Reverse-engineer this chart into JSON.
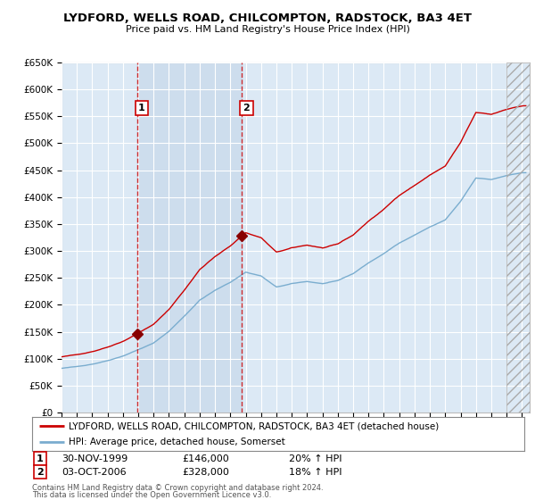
{
  "title": "LYDFORD, WELLS ROAD, CHILCOMPTON, RADSTOCK, BA3 4ET",
  "subtitle": "Price paid vs. HM Land Registry's House Price Index (HPI)",
  "ylim": [
    0,
    650000
  ],
  "xlim_start": 1995.0,
  "xlim_end": 2025.5,
  "yticks": [
    0,
    50000,
    100000,
    150000,
    200000,
    250000,
    300000,
    350000,
    400000,
    450000,
    500000,
    550000,
    600000,
    650000
  ],
  "ytick_labels": [
    "£0",
    "£50K",
    "£100K",
    "£150K",
    "£200K",
    "£250K",
    "£300K",
    "£350K",
    "£400K",
    "£450K",
    "£500K",
    "£550K",
    "£600K",
    "£650K"
  ],
  "background_color": "#dce9f5",
  "grid_color": "#ffffff",
  "sale1_date": 1999.917,
  "sale1_price": 146000,
  "sale1_label": "1",
  "sale1_display": "30-NOV-1999",
  "sale1_amount": "£146,000",
  "sale1_hpi": "20% ↑ HPI",
  "sale2_date": 2006.75,
  "sale2_price": 328000,
  "sale2_label": "2",
  "sale2_display": "03-OCT-2006",
  "sale2_amount": "£328,000",
  "sale2_hpi": "18% ↑ HPI",
  "line_color_price": "#cc0000",
  "line_color_hpi": "#7aadcf",
  "marker_color": "#880000",
  "legend_label_price": "LYDFORD, WELLS ROAD, CHILCOMPTON, RADSTOCK, BA3 4ET (detached house)",
  "legend_label_hpi": "HPI: Average price, detached house, Somerset",
  "footer1": "Contains HM Land Registry data © Crown copyright and database right 2024.",
  "footer2": "This data is licensed under the Open Government Licence v3.0.",
  "hatch_start": 2024.0,
  "between_shade_color": "#c8d8eb",
  "marker_box_color": "#cc0000"
}
